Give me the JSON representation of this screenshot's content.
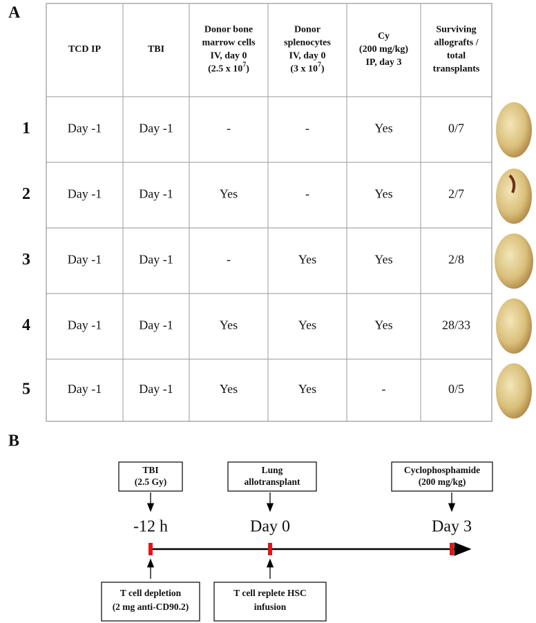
{
  "panel_a": {
    "label": "A",
    "table": {
      "header": [
        [
          "TCD IP"
        ],
        [
          "TBI"
        ],
        [
          "Donor bone",
          "marrow cells",
          "IV, day 0",
          {
            "base": "(2.5 x 10",
            "sup": "7",
            "tail": ")"
          }
        ],
        [
          "Donor",
          "splenocytes",
          "IV, day 0",
          {
            "base": "(3 x 10",
            "sup": "7",
            "tail": ")"
          }
        ],
        [
          "Cy",
          "(200 mg/kg)",
          "IP, day 3"
        ],
        [
          "Surviving",
          "allografts /",
          "total",
          "transplants"
        ]
      ],
      "rows": [
        {
          "label": "1",
          "cells": [
            "Day -1",
            "Day -1",
            "-",
            "-",
            "Yes",
            "0/7"
          ]
        },
        {
          "label": "2",
          "cells": [
            "Day -1",
            "Day -1",
            "Yes",
            "-",
            "Yes",
            "2/7"
          ]
        },
        {
          "label": "3",
          "cells": [
            "Day -1",
            "Day -1",
            "-",
            "Yes",
            "Yes",
            "2/8"
          ]
        },
        {
          "label": "4",
          "cells": [
            "Day -1",
            "Day -1",
            "Yes",
            "Yes",
            "Yes",
            "28/33"
          ]
        },
        {
          "label": "5",
          "cells": [
            "Day -1",
            "Day -1",
            "Yes",
            "Yes",
            "-",
            "0/5"
          ]
        }
      ]
    }
  },
  "panel_b": {
    "label": "B",
    "above": [
      [
        "TBI",
        "(2.5 Gy)"
      ],
      [
        "Lung",
        "allotransplant"
      ],
      [
        "Cyclophosphamide",
        "(200 mg/kg)"
      ]
    ],
    "times": [
      "-12 h",
      "Day 0",
      "Day 3"
    ],
    "below": [
      [
        "T cell depletion",
        "(2 mg anti-CD90.2)"
      ],
      [
        "T cell replete HSC",
        "infusion"
      ]
    ]
  }
}
